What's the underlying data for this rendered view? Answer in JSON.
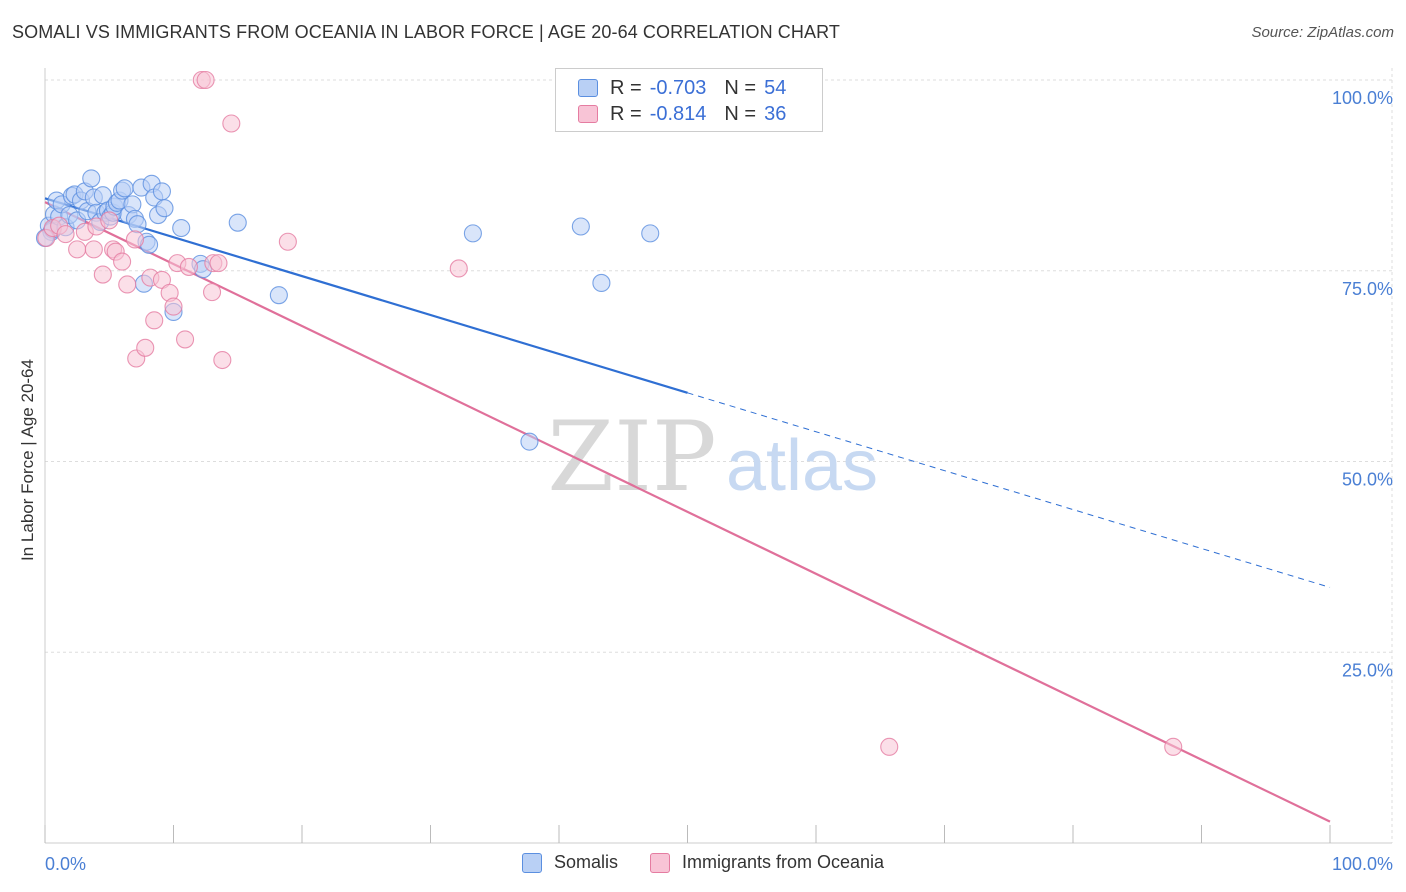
{
  "title": "SOMALI VS IMMIGRANTS FROM OCEANIA IN LABOR FORCE | AGE 20-64 CORRELATION CHART",
  "source": "Source: ZipAtlas.com",
  "watermark": {
    "zip": "ZIP",
    "atlas": "atlas"
  },
  "legend": {
    "rows": [
      {
        "r_label": "R =",
        "r_value": "-0.703",
        "n_label": "N =",
        "n_value": "54"
      },
      {
        "r_label": "R =",
        "r_value": "-0.814",
        "n_label": "N =",
        "n_value": "36"
      }
    ]
  },
  "chart_data": {
    "type": "scatter",
    "title": "SOMALI VS IMMIGRANTS FROM OCEANIA IN LABOR FORCE | AGE 20-64 CORRELATION CHART",
    "xlabel": "",
    "ylabel": "In Labor Force | Age 20-64",
    "xlim": [
      0,
      100
    ],
    "ylim": [
      0,
      100
    ],
    "x_tick_labels": [
      "0.0%",
      "100.0%"
    ],
    "y_ticks": [
      25,
      50,
      75,
      100
    ],
    "y_tick_labels": [
      "25.0%",
      "50.0%",
      "75.0%",
      "100.0%"
    ],
    "grid": true,
    "legend_position": "bottom-center",
    "series": [
      {
        "name": "Somalis",
        "color": "#5b8fe0",
        "fill": "#b9d0f5",
        "r": -0.703,
        "n": 54,
        "trend": {
          "x0": 0,
          "y0": 84.5,
          "x1": 100,
          "y1": 33.5,
          "solid_until": 50
        },
        "points": [
          [
            0.3,
            80.9
          ],
          [
            0.5,
            80.1
          ],
          [
            0.6,
            80.4
          ],
          [
            0.7,
            82.4
          ],
          [
            0.9,
            84.2
          ],
          [
            1.1,
            82.1
          ],
          [
            1.3,
            83.7
          ],
          [
            1.6,
            80.7
          ],
          [
            1.9,
            82.3
          ],
          [
            2.1,
            84.8
          ],
          [
            2.3,
            85.0
          ],
          [
            2.5,
            81.6
          ],
          [
            2.8,
            84.2
          ],
          [
            3.1,
            85.4
          ],
          [
            3.3,
            82.8
          ],
          [
            3.6,
            87.1
          ],
          [
            3.8,
            84.6
          ],
          [
            4.0,
            82.6
          ],
          [
            4.3,
            81.4
          ],
          [
            4.5,
            84.9
          ],
          [
            4.7,
            82.6
          ],
          [
            4.9,
            82.9
          ],
          [
            5.1,
            82.1
          ],
          [
            5.3,
            82.6
          ],
          [
            5.4,
            83.4
          ],
          [
            5.6,
            83.9
          ],
          [
            5.8,
            84.2
          ],
          [
            6.0,
            85.5
          ],
          [
            6.2,
            85.8
          ],
          [
            6.5,
            82.3
          ],
          [
            6.8,
            83.7
          ],
          [
            7.0,
            81.8
          ],
          [
            7.2,
            81.1
          ],
          [
            7.5,
            85.9
          ],
          [
            7.7,
            73.3
          ],
          [
            7.9,
            78.8
          ],
          [
            8.1,
            78.4
          ],
          [
            8.3,
            86.4
          ],
          [
            8.5,
            84.6
          ],
          [
            8.8,
            82.3
          ],
          [
            9.1,
            85.4
          ],
          [
            9.3,
            83.2
          ],
          [
            10.0,
            69.6
          ],
          [
            10.6,
            80.6
          ],
          [
            12.1,
            75.9
          ],
          [
            12.3,
            75.2
          ],
          [
            15.0,
            81.3
          ],
          [
            18.2,
            71.8
          ],
          [
            33.3,
            79.9
          ],
          [
            37.7,
            52.6
          ],
          [
            41.7,
            80.8
          ],
          [
            43.3,
            73.4
          ],
          [
            47.1,
            79.9
          ],
          [
            0.0,
            79.3
          ]
        ]
      },
      {
        "name": "Immigrants from Oceania",
        "color": "#e57ca1",
        "fill": "#f8c4d6",
        "r": -0.814,
        "n": 36,
        "trend": {
          "x0": 0,
          "y0": 84.0,
          "x1": 100,
          "y1": 2.8,
          "solid_until": 100
        },
        "points": [
          [
            0.1,
            79.3
          ],
          [
            0.6,
            80.6
          ],
          [
            1.1,
            80.9
          ],
          [
            1.6,
            79.8
          ],
          [
            2.5,
            77.8
          ],
          [
            3.1,
            80.1
          ],
          [
            3.8,
            77.8
          ],
          [
            4.0,
            80.8
          ],
          [
            4.5,
            74.5
          ],
          [
            5.0,
            81.6
          ],
          [
            5.3,
            77.8
          ],
          [
            5.5,
            77.5
          ],
          [
            6.0,
            76.2
          ],
          [
            6.4,
            73.2
          ],
          [
            7.0,
            79.1
          ],
          [
            7.1,
            63.5
          ],
          [
            7.8,
            64.9
          ],
          [
            8.2,
            74.1
          ],
          [
            8.5,
            68.5
          ],
          [
            9.1,
            73.8
          ],
          [
            9.7,
            72.1
          ],
          [
            10.0,
            70.3
          ],
          [
            10.3,
            76.0
          ],
          [
            10.9,
            66.0
          ],
          [
            11.2,
            75.5
          ],
          [
            12.2,
            100.0
          ],
          [
            12.5,
            100.0
          ],
          [
            13.0,
            72.2
          ],
          [
            13.1,
            76.0
          ],
          [
            13.5,
            76.0
          ],
          [
            13.8,
            63.3
          ],
          [
            14.5,
            94.3
          ],
          [
            18.9,
            78.8
          ],
          [
            32.2,
            75.3
          ],
          [
            65.7,
            12.6
          ],
          [
            87.8,
            12.6
          ]
        ]
      }
    ]
  }
}
